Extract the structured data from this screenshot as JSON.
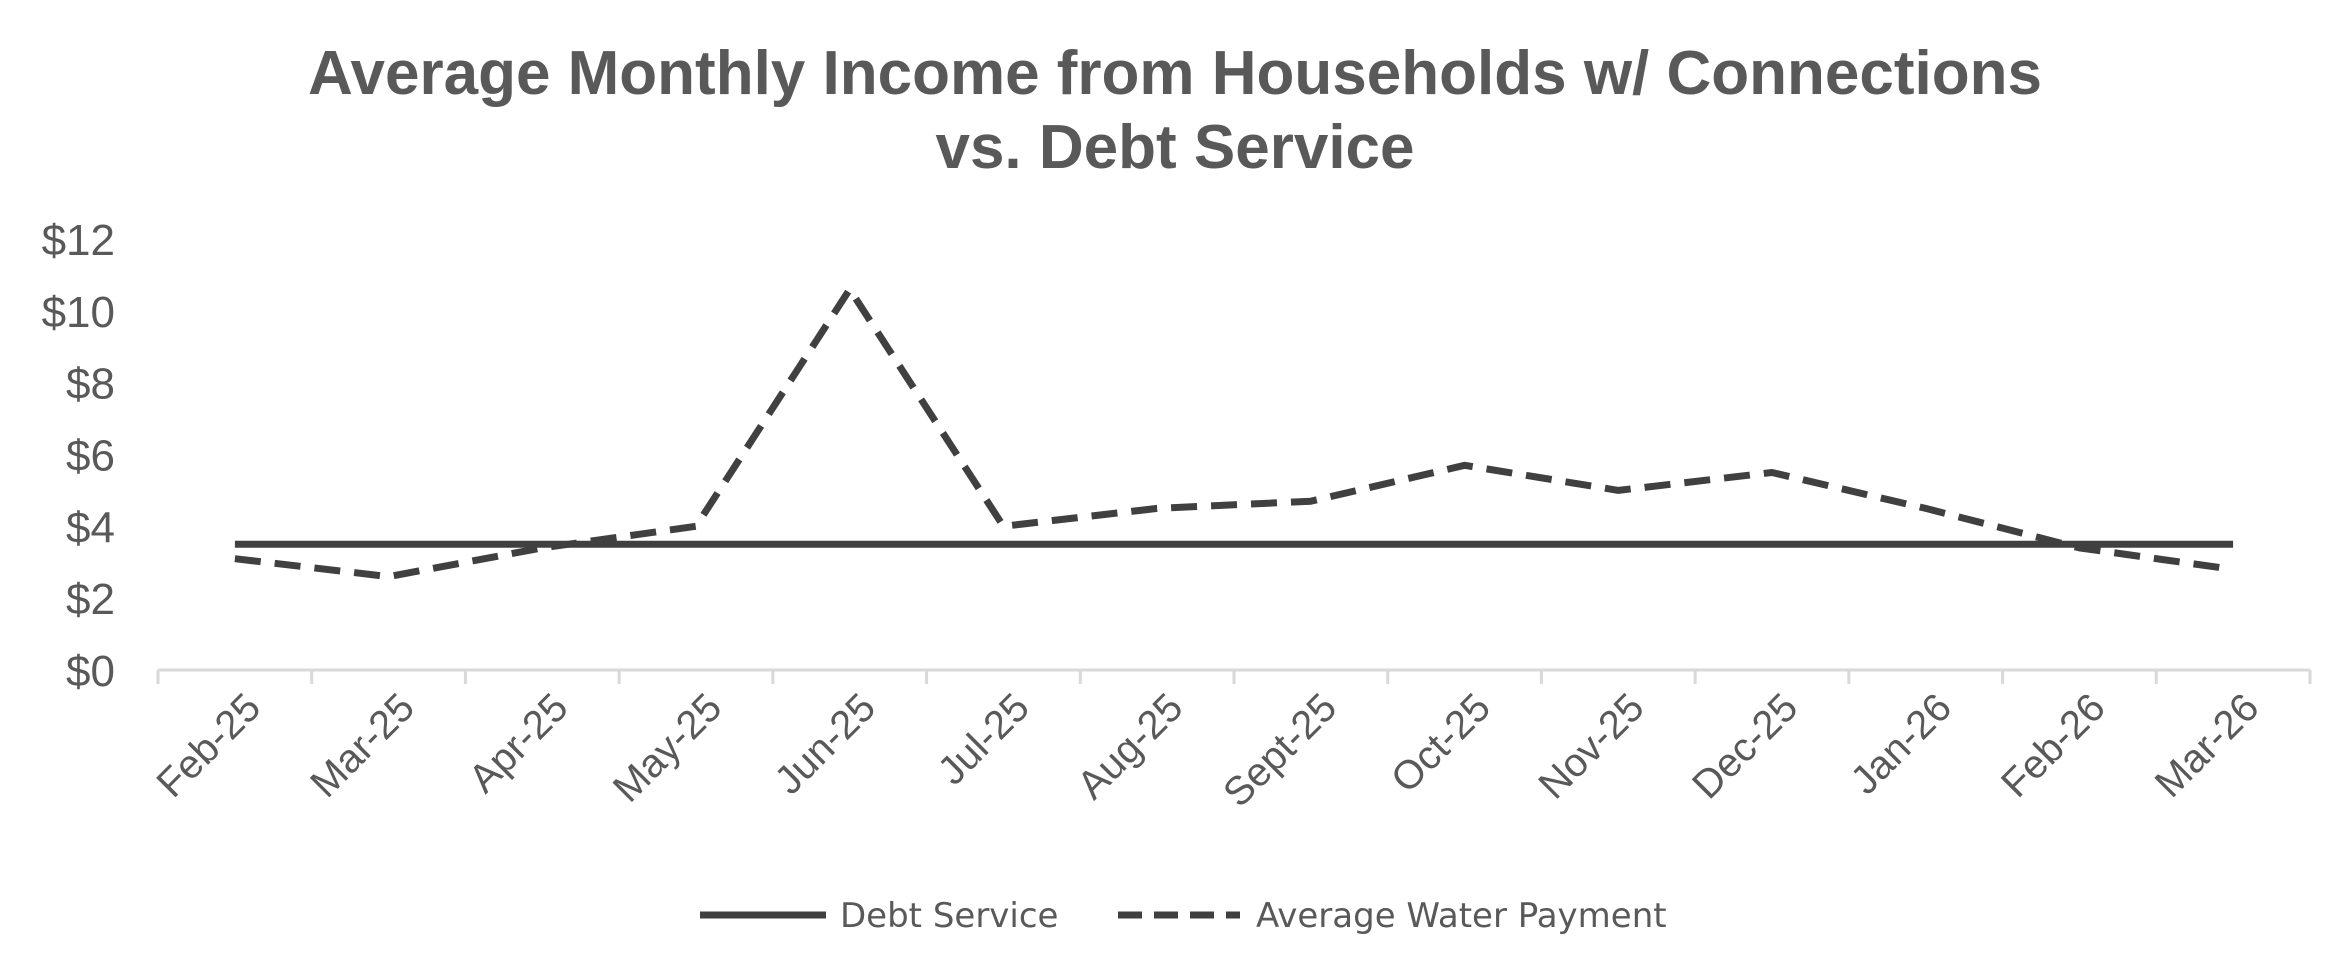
{
  "chart_data": {
    "type": "line",
    "title_lines": [
      "Average Monthly Income from Households w/ Connections",
      "vs. Debt Service"
    ],
    "categories": [
      "Feb-25",
      "Mar-25",
      "Apr-25",
      "May-25",
      "Jun-25",
      "Jul-25",
      "Aug-25",
      "Sept-25",
      "Oct-25",
      "Nov-25",
      "Dec-25",
      "Jan-26",
      "Feb-26",
      "Mar-26"
    ],
    "y_tick_labels": [
      "$0",
      "$2",
      "$4",
      "$6",
      "$8",
      "$10",
      "$12"
    ],
    "ylim": [
      0,
      12
    ],
    "grid": false,
    "legend_position": "bottom",
    "series": [
      {
        "name": "Debt Service",
        "style": "solid",
        "color": "#404040",
        "values": [
          3.5,
          3.5,
          3.5,
          3.5,
          3.5,
          3.5,
          3.5,
          3.5,
          3.5,
          3.5,
          3.5,
          3.5,
          3.5,
          3.5
        ]
      },
      {
        "name": "Average Water Payment",
        "style": "dashed",
        "color": "#404040",
        "values": [
          3.1,
          2.6,
          3.4,
          4.0,
          10.6,
          4.0,
          4.5,
          4.7,
          5.7,
          5.0,
          5.5,
          4.5,
          3.4,
          2.8
        ]
      }
    ]
  },
  "colors": {
    "axis": "#d9d9d9",
    "text": "#595959",
    "line": "#404040"
  }
}
